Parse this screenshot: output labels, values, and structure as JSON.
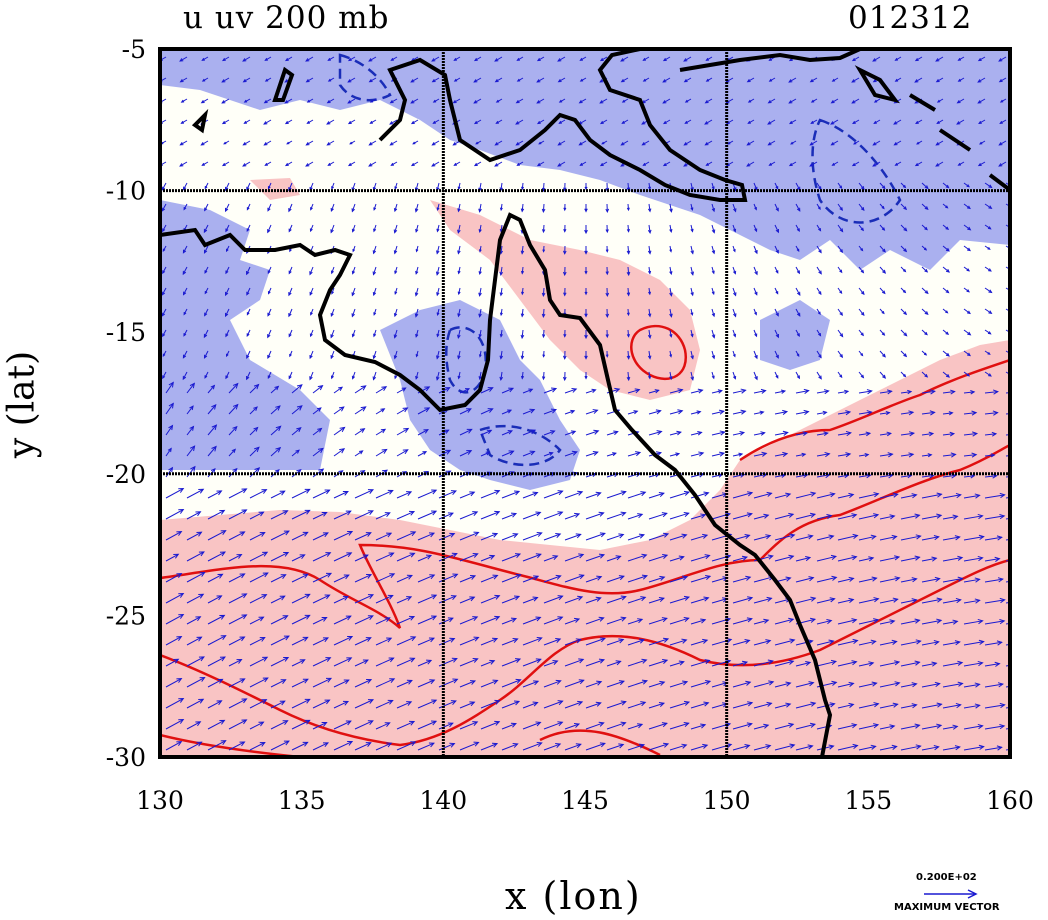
{
  "title": {
    "left": "u uv 200 mb",
    "right": "012312"
  },
  "axes": {
    "xlabel": "x (lon)",
    "ylabel": "y (lat)",
    "xlim": [
      130,
      160
    ],
    "ylim": [
      -30,
      -5
    ],
    "xticks": [
      "130",
      "135",
      "140",
      "145",
      "150",
      "155",
      "160"
    ],
    "yticks": [
      "-5",
      "-10",
      "-15",
      "-20",
      "-25",
      "-30"
    ],
    "grid_lon": [
      140,
      150
    ],
    "grid_lat": [
      -10,
      -20
    ]
  },
  "colors": {
    "positive_shade": "#f9c4c4",
    "negative_shade": "#aab0ef",
    "positive_contour": "#e01010",
    "negative_contour": "#1a2db8",
    "coastline": "#000000",
    "vectors": "#1a1ad0"
  },
  "reference_vector": {
    "scale_label": "0.200E+02",
    "label": "MAXIMUM VECTOR"
  }
}
